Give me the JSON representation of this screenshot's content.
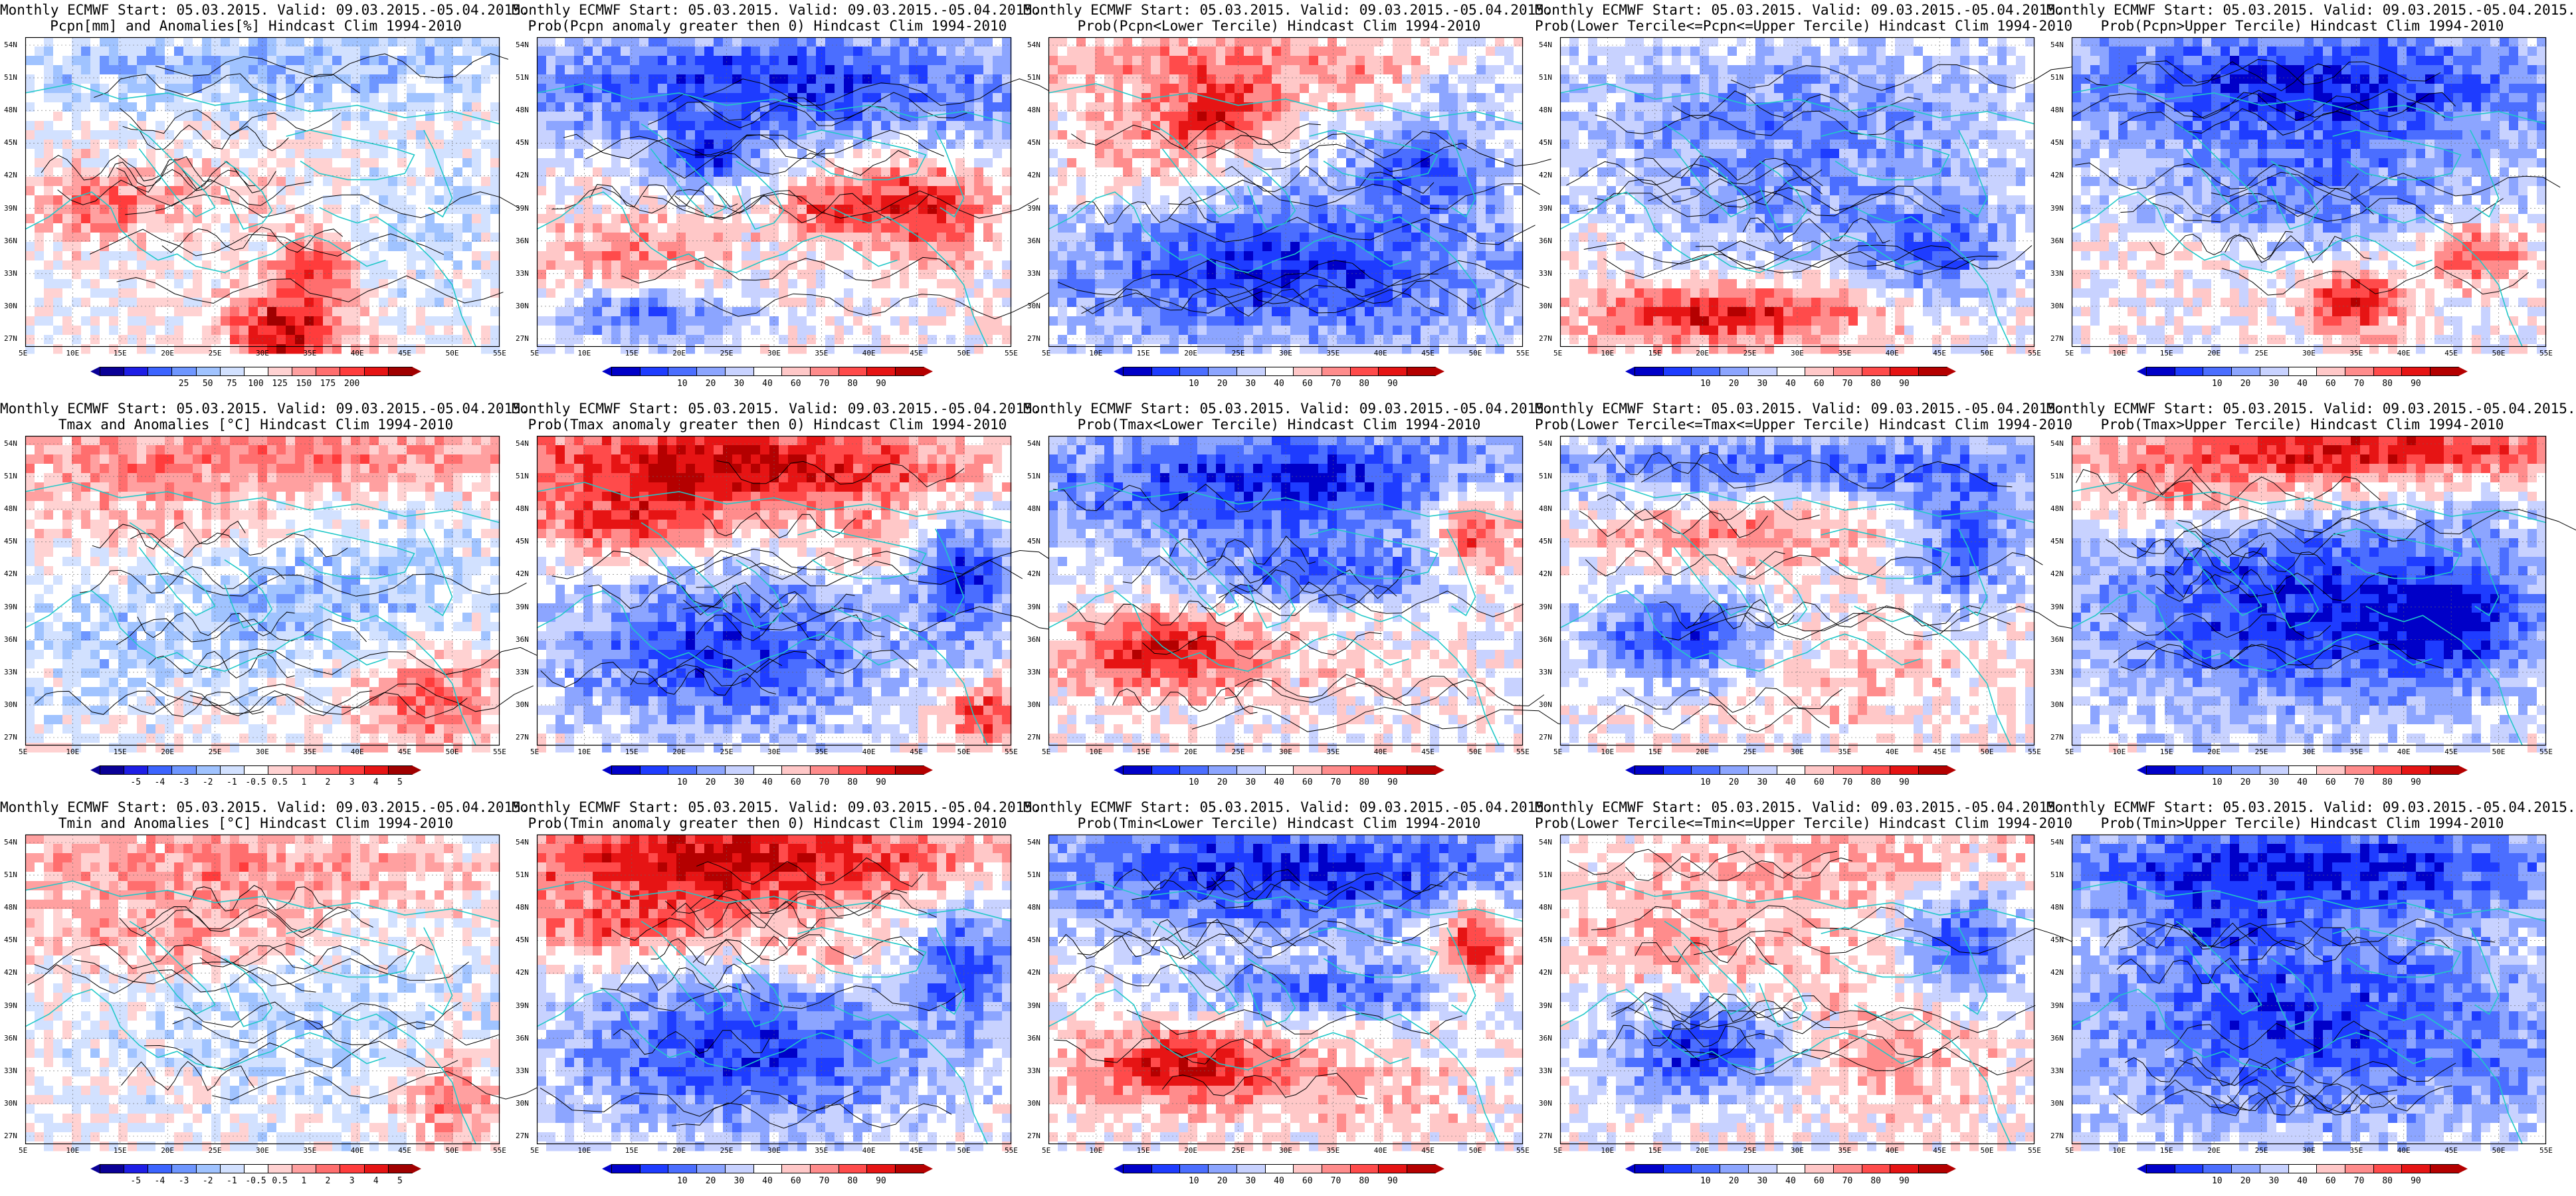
{
  "panels": [
    {
      "title1": "Monthly ECMWF Start: 05.03.2015. Valid: 09.03.2015.-05.04.2015.",
      "title2": "Pcpn[mm] and Anomalies[%] Hindcast Clim 1994-2010",
      "kind": "anom",
      "pattern": "pcpn_anom",
      "colorbar": [
        "25",
        "50",
        "75",
        "100",
        "125",
        "150",
        "175",
        "200"
      ]
    },
    {
      "title1": "Monthly ECMWF Start: 05.03.2015. Valid: 09.03.2015.-05.04.2015.",
      "title2": "Prob(Pcpn anomaly greater then 0) Hindcast Clim 1994-2010",
      "kind": "prob",
      "pattern": "pcpn_gt0",
      "colorbar": [
        "10",
        "20",
        "30",
        "40",
        "60",
        "70",
        "80",
        "90"
      ]
    },
    {
      "title1": "Monthly ECMWF Start: 05.03.2015. Valid: 09.03.2015.-05.04.2015.",
      "title2": "Prob(Pcpn<Lower Tercile) Hindcast Clim 1994-2010",
      "kind": "prob",
      "pattern": "pcpn_lower",
      "colorbar": [
        "10",
        "20",
        "30",
        "40",
        "60",
        "70",
        "80",
        "90"
      ]
    },
    {
      "title1": "Monthly ECMWF Start: 05.03.2015. Valid: 09.03.2015.-05.04.2015.",
      "title2": "Prob(Lower Tercile<=Pcpn<=Upper Tercile) Hindcast Clim 1994-2010",
      "kind": "prob",
      "pattern": "pcpn_mid",
      "colorbar": [
        "10",
        "20",
        "30",
        "40",
        "60",
        "70",
        "80",
        "90"
      ]
    },
    {
      "title1": "Monthly ECMWF Start: 05.03.2015. Valid: 09.03.2015.-05.04.2015.",
      "title2": "Prob(Pcpn>Upper Tercile) Hindcast Clim 1994-2010",
      "kind": "prob",
      "pattern": "pcpn_upper",
      "colorbar": [
        "10",
        "20",
        "30",
        "40",
        "60",
        "70",
        "80",
        "90"
      ]
    },
    {
      "title1": "Monthly ECMWF Start: 05.03.2015. Valid: 09.03.2015.-05.04.2015.",
      "title2": "Tmax and Anomalies [°C] Hindcast Clim 1994-2010",
      "kind": "anom",
      "pattern": "tmax_anom",
      "colorbar": [
        "-5",
        "-4",
        "-3",
        "-2",
        "-1",
        "-0.5",
        "0.5",
        "1",
        "2",
        "3",
        "4",
        "5"
      ]
    },
    {
      "title1": "Monthly ECMWF Start: 05.03.2015. Valid: 09.03.2015.-05.04.2015.",
      "title2": "Prob(Tmax anomaly greater then 0) Hindcast Clim 1994-2010",
      "kind": "prob",
      "pattern": "tmax_gt0",
      "colorbar": [
        "10",
        "20",
        "30",
        "40",
        "60",
        "70",
        "80",
        "90"
      ]
    },
    {
      "title1": "Monthly ECMWF Start: 05.03.2015. Valid: 09.03.2015.-05.04.2015.",
      "title2": "Prob(Tmax<Lower Tercile) Hindcast Clim 1994-2010",
      "kind": "prob",
      "pattern": "tmax_lower",
      "colorbar": [
        "10",
        "20",
        "30",
        "40",
        "60",
        "70",
        "80",
        "90"
      ]
    },
    {
      "title1": "Monthly ECMWF Start: 05.03.2015. Valid: 09.03.2015.-05.04.2015.",
      "title2": "Prob(Lower Tercile<=Tmax<=Upper Tercile) Hindcast Clim 1994-2010",
      "kind": "prob",
      "pattern": "tmax_mid",
      "colorbar": [
        "10",
        "20",
        "30",
        "40",
        "60",
        "70",
        "80",
        "90"
      ]
    },
    {
      "title1": "Monthly ECMWF Start: 05.03.2015. Valid: 09.03.2015.-05.04.2015.",
      "title2": "Prob(Tmax>Upper Tercile) Hindcast Clim 1994-2010",
      "kind": "prob",
      "pattern": "tmax_upper",
      "colorbar": [
        "10",
        "20",
        "30",
        "40",
        "60",
        "70",
        "80",
        "90"
      ]
    },
    {
      "title1": "Monthly ECMWF Start: 05.03.2015. Valid: 09.03.2015.-05.04.2015.",
      "title2": "Tmin and Anomalies [°C] Hindcast Clim 1994-2010",
      "kind": "anom",
      "pattern": "tmin_anom",
      "colorbar": [
        "-5",
        "-4",
        "-3",
        "-2",
        "-1",
        "-0.5",
        "0.5",
        "1",
        "2",
        "3",
        "4",
        "5"
      ]
    },
    {
      "title1": "Monthly ECMWF Start: 05.03.2015. Valid: 09.03.2015.-05.04.2015.",
      "title2": "Prob(Tmin anomaly greater then 0) Hindcast Clim 1994-2010",
      "kind": "prob",
      "pattern": "tmin_gt0",
      "colorbar": [
        "10",
        "20",
        "30",
        "40",
        "60",
        "70",
        "80",
        "90"
      ]
    },
    {
      "title1": "Monthly ECMWF Start: 05.03.2015. Valid: 09.03.2015.-05.04.2015.",
      "title2": "Prob(Tmin<Lower Tercile) Hindcast Clim 1994-2010",
      "kind": "prob",
      "pattern": "tmin_lower",
      "colorbar": [
        "10",
        "20",
        "30",
        "40",
        "60",
        "70",
        "80",
        "90"
      ]
    },
    {
      "title1": "Monthly ECMWF Start: 05.03.2015. Valid: 09.03.2015.-05.04.2015.",
      "title2": "Prob(Lower Tercile<=Tmin<=Upper Tercile) Hindcast Clim 1994-2010",
      "kind": "prob",
      "pattern": "tmin_mid",
      "colorbar": [
        "10",
        "20",
        "30",
        "40",
        "60",
        "70",
        "80",
        "90"
      ]
    },
    {
      "title1": "Monthly ECMWF Start: 05.03.2015. Valid: 09.03.2015.-05.04.2015.",
      "title2": "Prob(Tmin>Upper Tercile) Hindcast Clim 1994-2010",
      "kind": "prob",
      "pattern": "tmin_upper",
      "colorbar": [
        "10",
        "20",
        "30",
        "40",
        "60",
        "70",
        "80",
        "90"
      ]
    }
  ],
  "axes": {
    "lon_labels": [
      "5E",
      "10E",
      "15E",
      "20E",
      "25E",
      "30E",
      "35E",
      "40E",
      "45E",
      "50E",
      "55E"
    ],
    "lat_labels": [
      "54N",
      "51N",
      "48N",
      "45N",
      "42N",
      "39N",
      "36N",
      "33N",
      "30N",
      "27N"
    ]
  },
  "colors": {
    "prob_scale": [
      "#0000c8",
      "#1e3cff",
      "#4b6eff",
      "#8ca5ff",
      "#c8d2ff",
      "#ffffff",
      "#ffc8c8",
      "#ff8c8c",
      "#ff4b4b",
      "#e61414",
      "#b40000"
    ],
    "anom_scale": [
      "#0a0096",
      "#1e1ee6",
      "#3c64ff",
      "#6e96ff",
      "#a0c3ff",
      "#d2e1ff",
      "#ffffff",
      "#ffd2d2",
      "#ffa0a0",
      "#ff6e6e",
      "#ff3c3c",
      "#e61414",
      "#a00000"
    ],
    "coast": "#20c8c8",
    "contour": "#000000"
  }
}
